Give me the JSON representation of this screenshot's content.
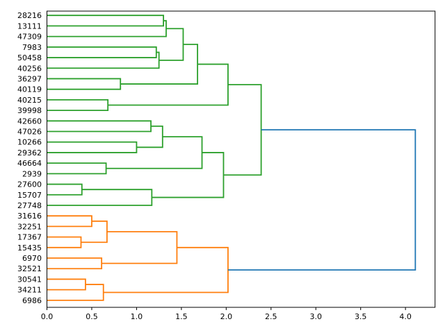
{
  "chart_data": {
    "type": "dendrogram",
    "orientation": "right",
    "title": "",
    "leaves": [
      "28216",
      "13111",
      "47309",
      "7983",
      "50458",
      "40256",
      "36297",
      "40119",
      "40215",
      "39998",
      "42660",
      "47026",
      "10266",
      "29362",
      "46664",
      "2939",
      "27600",
      "15707",
      "27748",
      "31616",
      "32251",
      "17367",
      "15435",
      "6970",
      "32521",
      "30541",
      "34211",
      "6986"
    ],
    "xlim": [
      0,
      4.33
    ],
    "x_ticks": [
      0.0,
      0.5,
      1.0,
      1.5,
      2.0,
      2.5,
      3.0,
      3.5,
      4.0
    ],
    "x_tick_labels": [
      "0.0",
      "0.5",
      "1.0",
      "1.5",
      "2.0",
      "2.5",
      "3.0",
      "3.5",
      "4.0"
    ],
    "grid": false,
    "legend": false,
    "links": [
      {
        "a": 0,
        "b": 1,
        "h": 1.3,
        "c": "green"
      },
      {
        "a": 28,
        "b": 2,
        "h": 1.33,
        "c": "green"
      },
      {
        "a": 3,
        "b": 4,
        "h": 1.22,
        "c": "green"
      },
      {
        "a": 30,
        "b": 5,
        "h": 1.25,
        "c": "green"
      },
      {
        "a": 29,
        "b": 31,
        "h": 1.52,
        "c": "green"
      },
      {
        "a": 6,
        "b": 7,
        "h": 0.82,
        "c": "green"
      },
      {
        "a": 32,
        "b": 33,
        "h": 1.68,
        "c": "green"
      },
      {
        "a": 8,
        "b": 9,
        "h": 0.68,
        "c": "green"
      },
      {
        "a": 34,
        "b": 35,
        "h": 2.02,
        "c": "green"
      },
      {
        "a": 10,
        "b": 11,
        "h": 1.16,
        "c": "green"
      },
      {
        "a": 12,
        "b": 13,
        "h": 1.0,
        "c": "green"
      },
      {
        "a": 37,
        "b": 38,
        "h": 1.29,
        "c": "green"
      },
      {
        "a": 14,
        "b": 15,
        "h": 0.66,
        "c": "green"
      },
      {
        "a": 39,
        "b": 40,
        "h": 1.73,
        "c": "green"
      },
      {
        "a": 16,
        "b": 17,
        "h": 0.39,
        "c": "green"
      },
      {
        "a": 42,
        "b": 18,
        "h": 1.17,
        "c": "green"
      },
      {
        "a": 41,
        "b": 43,
        "h": 1.97,
        "c": "green"
      },
      {
        "a": 36,
        "b": 44,
        "h": 2.39,
        "c": "green"
      },
      {
        "a": 19,
        "b": 20,
        "h": 0.5,
        "c": "orange"
      },
      {
        "a": 21,
        "b": 22,
        "h": 0.38,
        "c": "orange"
      },
      {
        "a": 46,
        "b": 47,
        "h": 0.67,
        "c": "orange"
      },
      {
        "a": 23,
        "b": 24,
        "h": 0.61,
        "c": "orange"
      },
      {
        "a": 48,
        "b": 49,
        "h": 1.45,
        "c": "orange"
      },
      {
        "a": 25,
        "b": 26,
        "h": 0.43,
        "c": "orange"
      },
      {
        "a": 51,
        "b": 27,
        "h": 0.63,
        "c": "orange"
      },
      {
        "a": 50,
        "b": 52,
        "h": 2.02,
        "c": "orange"
      },
      {
        "a": 45,
        "b": 53,
        "h": 4.11,
        "c": "blue"
      }
    ],
    "colors": {
      "green": "#2ca02c",
      "orange": "#ff7f0e",
      "blue": "#1f77b4",
      "axis": "#000000",
      "background": "#ffffff"
    }
  }
}
